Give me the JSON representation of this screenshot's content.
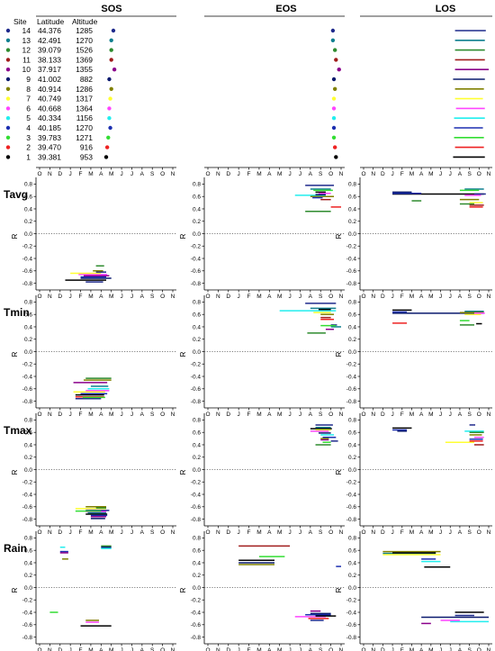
{
  "figure": {
    "column_titles": [
      "SOS",
      "EOS",
      "LOS"
    ],
    "row_labels": [
      "Tavg",
      "Tmin",
      "Tmax",
      "Rain"
    ],
    "y_axis_label": "R",
    "months": [
      "O",
      "N",
      "D",
      "J",
      "F",
      "M",
      "A",
      "M",
      "J",
      "J",
      "A",
      "S",
      "O",
      "N"
    ]
  },
  "legend": {
    "headers": {
      "site": "Site",
      "latitude": "Latitude",
      "altitude": "Altitude"
    },
    "sites": [
      {
        "site": "14",
        "latitude": "44.376",
        "altitude": "1285",
        "color": "#1f2a8c"
      },
      {
        "site": "13",
        "latitude": "42.491",
        "altitude": "1270",
        "color": "#0f7f8f"
      },
      {
        "site": "12",
        "latitude": "39.079",
        "altitude": "1526",
        "color": "#2e8b2e"
      },
      {
        "site": "11",
        "latitude": "38.133",
        "altitude": "1369",
        "color": "#a01c1c"
      },
      {
        "site": "10",
        "latitude": "37.917",
        "altitude": "1355",
        "color": "#8b008b"
      },
      {
        "site": "9",
        "latitude": "41.002",
        "altitude": "882",
        "color": "#0a1a6e"
      },
      {
        "site": "8",
        "latitude": "40.914",
        "altitude": "1286",
        "color": "#808000"
      },
      {
        "site": "7",
        "latitude": "40.749",
        "altitude": "1317",
        "color": "#ffff33"
      },
      {
        "site": "6",
        "latitude": "40.668",
        "altitude": "1364",
        "color": "#ff44ff"
      },
      {
        "site": "5",
        "latitude": "40.334",
        "altitude": "1156",
        "color": "#22eeee"
      },
      {
        "site": "4",
        "latitude": "40.185",
        "altitude": "1270",
        "color": "#1c2fb0"
      },
      {
        "site": "3",
        "latitude": "39.783",
        "altitude": "1271",
        "color": "#33dd33"
      },
      {
        "site": "2",
        "latitude": "39.470",
        "altitude": "916",
        "color": "#ee2222"
      },
      {
        "site": "1",
        "latitude": "39.381",
        "altitude": "953",
        "color": "#000000"
      }
    ]
  },
  "chart_data": {
    "type": "line",
    "note_units": "x in months index along axis O(0) ... N(13); y in correlation R",
    "ylim": [
      -0.85,
      0.85
    ],
    "y_ticks": [
      0.8,
      0.6,
      0.4,
      0.2,
      0.0,
      -0.2,
      -0.4,
      -0.6,
      -0.8
    ],
    "y_tick_labels": [
      "0.8",
      "0.6",
      "0.4",
      "0.2",
      "0.0",
      "-0.2",
      "-0.4",
      "-0.6",
      "-0.8"
    ],
    "xlim": [
      0,
      13
    ],
    "phenology_points": {
      "SOS": [
        7.2,
        7.0,
        7.0,
        7.0,
        7.3,
        6.8,
        7.0,
        6.9,
        6.8,
        6.8,
        6.9,
        6.7,
        6.6,
        6.5
      ],
      "EOS": [
        12.2,
        12.2,
        12.4,
        12.5,
        12.8,
        12.3,
        12.4,
        12.3,
        12.3,
        12.3,
        12.3,
        12.3,
        12.4,
        12.5
      ]
    },
    "los_bars": [
      [
        9.5,
        12.7
      ],
      [
        9.5,
        12.6
      ],
      [
        9.5,
        12.6
      ],
      [
        9.5,
        12.6
      ],
      [
        9.5,
        13.0
      ],
      [
        9.3,
        12.6
      ],
      [
        9.5,
        12.5
      ],
      [
        9.5,
        12.4
      ],
      [
        9.6,
        12.6
      ],
      [
        9.4,
        12.6
      ],
      [
        9.4,
        12.4
      ],
      [
        9.4,
        12.5
      ],
      [
        9.5,
        12.5
      ],
      [
        9.3,
        12.6
      ]
    ],
    "panels": [
      {
        "row": "Tavg",
        "col": "SOS",
        "segments": [
          [
            2.5,
            6.5,
            -0.75,
            "#000000"
          ],
          [
            4.0,
            7.0,
            -0.72,
            "#0a1a6e"
          ],
          [
            4.0,
            6.5,
            -0.7,
            "#1c2fb0"
          ],
          [
            4.3,
            6.8,
            -0.68,
            "#8b008b"
          ],
          [
            3.8,
            6.6,
            -0.66,
            "#ff44ff"
          ],
          [
            3.0,
            6.0,
            -0.64,
            "#ffff33"
          ],
          [
            5.5,
            6.5,
            -0.62,
            "#1f2a8c"
          ],
          [
            5.2,
            6.2,
            -0.6,
            "#808000"
          ],
          [
            5.5,
            6.3,
            -0.52,
            "#2e8b2e"
          ],
          [
            4.5,
            6.2,
            -0.78,
            "#1f2a8c"
          ]
        ]
      },
      {
        "row": "Tavg",
        "col": "EOS",
        "segments": [
          [
            9.5,
            12.3,
            0.78,
            "#1f2a8c"
          ],
          [
            10.0,
            12.0,
            0.72,
            "#0f7f8f"
          ],
          [
            10.3,
            12.2,
            0.7,
            "#33dd33"
          ],
          [
            10.5,
            11.5,
            0.67,
            "#000000"
          ],
          [
            10.8,
            12.0,
            0.65,
            "#ff44ff"
          ],
          [
            8.5,
            11.5,
            0.62,
            "#22eeee"
          ],
          [
            10.0,
            12.3,
            0.6,
            "#808000"
          ],
          [
            11.0,
            12.0,
            0.55,
            "#a01c1c"
          ],
          [
            12.0,
            13.0,
            0.43,
            "#ee2222"
          ],
          [
            9.5,
            12.0,
            0.36,
            "#2e8b2e"
          ],
          [
            10.5,
            11.5,
            0.63,
            "#0a1a6e"
          ],
          [
            10.2,
            11.2,
            0.58,
            "#1c2fb0"
          ]
        ]
      },
      {
        "row": "Tavg",
        "col": "LOS",
        "segments": [
          [
            3.0,
            12.5,
            0.64,
            "#000000"
          ],
          [
            3.0,
            5.0,
            0.67,
            "#0a1a6e"
          ],
          [
            3.0,
            6.0,
            0.65,
            "#1c2fb0"
          ],
          [
            10.5,
            12.5,
            0.72,
            "#0f7f8f"
          ],
          [
            10.0,
            12.0,
            0.7,
            "#33dd33"
          ],
          [
            10.5,
            12.2,
            0.62,
            "#ff44ff"
          ],
          [
            10.0,
            12.0,
            0.55,
            "#808000"
          ],
          [
            11.0,
            12.4,
            0.5,
            "#ffff33"
          ],
          [
            11.0,
            12.5,
            0.46,
            "#a01c1c"
          ],
          [
            11.0,
            12.4,
            0.43,
            "#ee2222"
          ],
          [
            11.5,
            12.7,
            0.64,
            "#1f2a8c"
          ],
          [
            5.0,
            6.0,
            0.53,
            "#2e8b2e"
          ],
          [
            10.0,
            11.5,
            0.48,
            "#2e8b2e"
          ]
        ]
      },
      {
        "row": "Tmin",
        "col": "SOS",
        "segments": [
          [
            4.5,
            7.0,
            -0.43,
            "#2e8b2e"
          ],
          [
            4.3,
            7.0,
            -0.46,
            "#808000"
          ],
          [
            3.3,
            6.6,
            -0.5,
            "#8b008b"
          ],
          [
            5.0,
            6.7,
            -0.56,
            "#0f7f8f"
          ],
          [
            4.7,
            6.8,
            -0.6,
            "#22eeee"
          ],
          [
            4.5,
            6.8,
            -0.63,
            "#ff44ff"
          ],
          [
            3.3,
            6.4,
            -0.65,
            "#ffff33"
          ],
          [
            4.0,
            6.6,
            -0.68,
            "#1c2fb0"
          ],
          [
            3.5,
            6.3,
            -0.7,
            "#000000"
          ],
          [
            3.5,
            6.3,
            -0.73,
            "#ee2222"
          ],
          [
            3.5,
            6.0,
            -0.76,
            "#1f2a8c"
          ],
          [
            4.2,
            6.4,
            -0.74,
            "#33dd33"
          ]
        ]
      },
      {
        "row": "Tmin",
        "col": "EOS",
        "segments": [
          [
            9.5,
            12.5,
            0.78,
            "#1f2a8c"
          ],
          [
            7.0,
            12.5,
            0.66,
            "#22eeee"
          ],
          [
            10.0,
            12.5,
            0.7,
            "#0f7f8f"
          ],
          [
            10.8,
            12.0,
            0.68,
            "#000000"
          ],
          [
            10.3,
            12.0,
            0.63,
            "#ffff33"
          ],
          [
            11.0,
            12.3,
            0.6,
            "#808000"
          ],
          [
            11.0,
            12.0,
            0.55,
            "#a01c1c"
          ],
          [
            11.0,
            12.3,
            0.52,
            "#ee2222"
          ],
          [
            12.0,
            12.6,
            0.43,
            "#1f2a8c"
          ],
          [
            12.0,
            13.0,
            0.4,
            "#0f7f8f"
          ],
          [
            11.5,
            12.3,
            0.36,
            "#8b008b"
          ],
          [
            9.7,
            11.5,
            0.3,
            "#2e8b2e"
          ],
          [
            11.0,
            12.5,
            0.42,
            "#33dd33"
          ]
        ]
      },
      {
        "row": "Tmin",
        "col": "LOS",
        "segments": [
          [
            3.0,
            5.0,
            0.67,
            "#000000"
          ],
          [
            3.0,
            4.5,
            0.64,
            "#1c2fb0"
          ],
          [
            3.0,
            12.5,
            0.62,
            "#0a1a6e"
          ],
          [
            10.5,
            12.5,
            0.65,
            "#0f7f8f"
          ],
          [
            10.0,
            12.5,
            0.63,
            "#808000"
          ],
          [
            10.5,
            12.2,
            0.6,
            "#ffff33"
          ],
          [
            10.0,
            11.0,
            0.5,
            "#33dd33"
          ],
          [
            10.0,
            11.5,
            0.43,
            "#2e8b2e"
          ],
          [
            11.7,
            12.3,
            0.45,
            "#000000"
          ],
          [
            3.0,
            4.5,
            0.46,
            "#ee2222"
          ],
          [
            11.5,
            12.6,
            0.62,
            "#ff44ff"
          ]
        ]
      },
      {
        "row": "Tmax",
        "col": "SOS",
        "segments": [
          [
            3.5,
            6.5,
            -0.63,
            "#ffff33"
          ],
          [
            4.5,
            6.5,
            -0.6,
            "#808000"
          ],
          [
            5.5,
            6.5,
            -0.62,
            "#2e8b2e"
          ],
          [
            4.5,
            6.8,
            -0.66,
            "#1f2a8c"
          ],
          [
            4.5,
            6.5,
            -0.68,
            "#ff44ff"
          ],
          [
            4.7,
            6.5,
            -0.7,
            "#0f7f8f"
          ],
          [
            4.5,
            6.6,
            -0.72,
            "#000000"
          ],
          [
            5.0,
            6.6,
            -0.74,
            "#1c2fb0"
          ],
          [
            5.0,
            6.5,
            -0.76,
            "#8b008b"
          ],
          [
            5.0,
            6.4,
            -0.79,
            "#0a1a6e"
          ],
          [
            3.5,
            6.0,
            -0.67,
            "#33dd33"
          ]
        ]
      },
      {
        "row": "Tmax",
        "col": "EOS",
        "segments": [
          [
            10.5,
            12.2,
            0.72,
            "#1f2a8c"
          ],
          [
            10.5,
            12.0,
            0.68,
            "#0f7f8f"
          ],
          [
            10.0,
            12.1,
            0.66,
            "#000000"
          ],
          [
            10.5,
            12.0,
            0.64,
            "#ffff33"
          ],
          [
            10.0,
            11.8,
            0.62,
            "#ff44ff"
          ],
          [
            10.8,
            12.0,
            0.59,
            "#0a1a6e"
          ],
          [
            11.0,
            12.3,
            0.56,
            "#22eeee"
          ],
          [
            11.2,
            12.5,
            0.52,
            "#1c2fb0"
          ],
          [
            11.0,
            11.8,
            0.48,
            "#8b008b"
          ],
          [
            11.2,
            12.0,
            0.44,
            "#33dd33"
          ],
          [
            10.5,
            12.0,
            0.4,
            "#2e8b2e"
          ],
          [
            12.0,
            12.7,
            0.46,
            "#1f2a8c"
          ],
          [
            11.0,
            11.8,
            0.5,
            "#808000"
          ]
        ]
      },
      {
        "row": "Tmax",
        "col": "LOS",
        "segments": [
          [
            3.0,
            5.0,
            0.67,
            "#000000"
          ],
          [
            3.0,
            4.5,
            0.64,
            "#1c2fb0"
          ],
          [
            3.5,
            4.5,
            0.62,
            "#0a1a6e"
          ],
          [
            11.0,
            11.6,
            0.72,
            "#1f2a8c"
          ],
          [
            10.5,
            12.5,
            0.62,
            "#22eeee"
          ],
          [
            11.0,
            12.5,
            0.6,
            "#2e8b2e"
          ],
          [
            11.0,
            12.3,
            0.56,
            "#808000"
          ],
          [
            11.5,
            12.5,
            0.52,
            "#ff44ff"
          ],
          [
            8.5,
            11.5,
            0.44,
            "#ffff33"
          ],
          [
            11.0,
            12.4,
            0.46,
            "#ee2222"
          ],
          [
            11.5,
            12.5,
            0.4,
            "#a01c1c"
          ],
          [
            11.0,
            12.4,
            0.49,
            "#1c2fb0"
          ]
        ]
      },
      {
        "row": "Rain",
        "col": "SOS",
        "segments": [
          [
            2.0,
            2.5,
            0.65,
            "#22eeee"
          ],
          [
            2.0,
            2.8,
            0.58,
            "#1c2fb0"
          ],
          [
            2.0,
            2.8,
            0.56,
            "#8b008b"
          ],
          [
            2.2,
            2.8,
            0.46,
            "#808000"
          ],
          [
            6.0,
            7.0,
            0.67,
            "#2e8b2e"
          ],
          [
            6.0,
            7.0,
            0.65,
            "#0a1a6e"
          ],
          [
            6.0,
            7.0,
            0.63,
            "#22eeee"
          ],
          [
            1.0,
            1.8,
            -0.4,
            "#33dd33"
          ],
          [
            4.5,
            5.8,
            -0.53,
            "#808000"
          ],
          [
            4.5,
            5.8,
            -0.56,
            "#ff44ff"
          ],
          [
            4.0,
            7.0,
            -0.62,
            "#000000"
          ]
        ]
      },
      {
        "row": "Rain",
        "col": "EOS",
        "segments": [
          [
            3.0,
            8.0,
            0.67,
            "#a01c1c"
          ],
          [
            3.0,
            6.5,
            0.44,
            "#000000"
          ],
          [
            3.0,
            6.5,
            0.4,
            "#0a1a6e"
          ],
          [
            3.0,
            6.5,
            0.37,
            "#808000"
          ],
          [
            5.0,
            7.5,
            0.5,
            "#33dd33"
          ],
          [
            12.5,
            13.0,
            0.34,
            "#1c2fb0"
          ],
          [
            8.5,
            11.5,
            -0.47,
            "#ff44ff"
          ],
          [
            9.5,
            12.0,
            -0.44,
            "#1c2fb0"
          ],
          [
            10.0,
            12.0,
            -0.42,
            "#0a1a6e"
          ],
          [
            10.0,
            11.0,
            -0.38,
            "#8b008b"
          ],
          [
            10.5,
            12.5,
            -0.46,
            "#000000"
          ],
          [
            9.8,
            11.8,
            -0.5,
            "#ee2222"
          ],
          [
            10.0,
            11.3,
            -0.53,
            "#1f2a8c"
          ]
        ]
      },
      {
        "row": "Rain",
        "col": "LOS",
        "segments": [
          [
            2.0,
            8.0,
            0.58,
            "#808000"
          ],
          [
            2.0,
            7.5,
            0.55,
            "#0f7f8f"
          ],
          [
            2.0,
            8.0,
            0.53,
            "#ffff33"
          ],
          [
            3.0,
            7.5,
            0.56,
            "#000000"
          ],
          [
            6.0,
            8.0,
            0.42,
            "#22eeee"
          ],
          [
            6.3,
            9.0,
            0.33,
            "#000000"
          ],
          [
            6.0,
            7.5,
            0.46,
            "#1c2fb0"
          ],
          [
            6.0,
            13.0,
            -0.48,
            "#0a1a6e"
          ],
          [
            9.5,
            12.5,
            -0.4,
            "#000000"
          ],
          [
            9.0,
            13.0,
            -0.55,
            "#22eeee"
          ],
          [
            6.0,
            7.0,
            -0.58,
            "#8b008b"
          ],
          [
            8.0,
            10.0,
            -0.53,
            "#ff44ff"
          ],
          [
            9.5,
            11.5,
            -0.45,
            "#1f2a8c"
          ]
        ]
      }
    ]
  }
}
